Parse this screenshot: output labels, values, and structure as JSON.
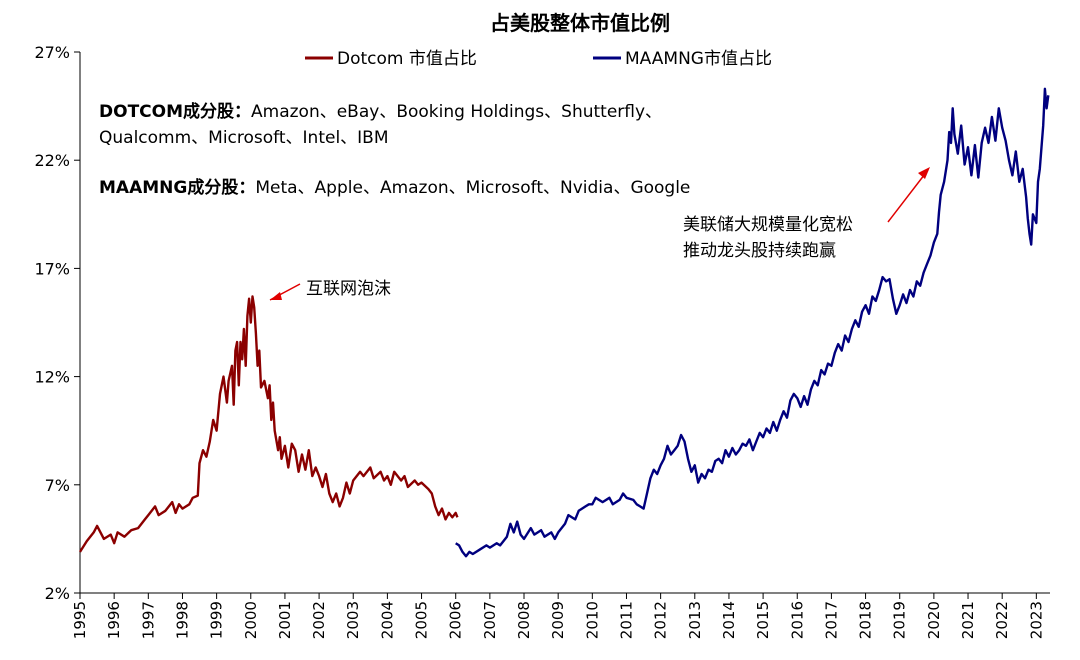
{
  "chart_data": {
    "type": "line",
    "title": "占美股整体市值比例",
    "y_unit": "%",
    "ylim": [
      2,
      27
    ],
    "y_ticks": [
      2,
      7,
      12,
      17,
      22,
      27
    ],
    "y_tick_labels": [
      "2%",
      "7%",
      "12%",
      "17%",
      "22%",
      "27%"
    ],
    "xlim": [
      1995,
      2023.4
    ],
    "x_ticks": [
      "1995",
      "1996",
      "1997",
      "1998",
      "1999",
      "2000",
      "2001",
      "2002",
      "2003",
      "2004",
      "2005",
      "2006",
      "2007",
      "2008",
      "2009",
      "2010",
      "2011",
      "2012",
      "2013",
      "2014",
      "2015",
      "2016",
      "2017",
      "2018",
      "2019",
      "2020",
      "2021",
      "2022",
      "2023"
    ],
    "series": [
      {
        "name": "Dotcom 市值占比",
        "color": "#8B0000",
        "points": [
          [
            1995.0,
            3.9
          ],
          [
            1995.2,
            4.4
          ],
          [
            1995.4,
            4.8
          ],
          [
            1995.5,
            5.1
          ],
          [
            1995.7,
            4.5
          ],
          [
            1995.9,
            4.7
          ],
          [
            1996.0,
            4.3
          ],
          [
            1996.1,
            4.8
          ],
          [
            1996.3,
            4.6
          ],
          [
            1996.5,
            4.9
          ],
          [
            1996.7,
            5.0
          ],
          [
            1996.9,
            5.4
          ],
          [
            1997.0,
            5.6
          ],
          [
            1997.2,
            6.0
          ],
          [
            1997.3,
            5.6
          ],
          [
            1997.5,
            5.8
          ],
          [
            1997.7,
            6.2
          ],
          [
            1997.8,
            5.7
          ],
          [
            1997.9,
            6.1
          ],
          [
            1998.0,
            5.9
          ],
          [
            1998.2,
            6.1
          ],
          [
            1998.3,
            6.4
          ],
          [
            1998.45,
            6.5
          ],
          [
            1998.5,
            8.0
          ],
          [
            1998.6,
            8.6
          ],
          [
            1998.7,
            8.3
          ],
          [
            1998.8,
            9.0
          ],
          [
            1998.9,
            10.0
          ],
          [
            1999.0,
            9.5
          ],
          [
            1999.1,
            11.2
          ],
          [
            1999.2,
            12.0
          ],
          [
            1999.3,
            10.8
          ],
          [
            1999.35,
            11.8
          ],
          [
            1999.45,
            12.5
          ],
          [
            1999.5,
            10.7
          ],
          [
            1999.55,
            13.2
          ],
          [
            1999.6,
            13.6
          ],
          [
            1999.65,
            11.6
          ],
          [
            1999.7,
            13.6
          ],
          [
            1999.75,
            12.8
          ],
          [
            1999.8,
            14.2
          ],
          [
            1999.85,
            12.5
          ],
          [
            1999.9,
            14.8
          ],
          [
            1999.95,
            15.6
          ],
          [
            2000.0,
            14.5
          ],
          [
            2000.05,
            15.7
          ],
          [
            2000.1,
            15.2
          ],
          [
            2000.15,
            14.0
          ],
          [
            2000.2,
            12.5
          ],
          [
            2000.25,
            13.2
          ],
          [
            2000.3,
            11.5
          ],
          [
            2000.4,
            11.8
          ],
          [
            2000.5,
            11.0
          ],
          [
            2000.55,
            11.6
          ],
          [
            2000.6,
            10.0
          ],
          [
            2000.65,
            10.8
          ],
          [
            2000.7,
            9.5
          ],
          [
            2000.8,
            8.6
          ],
          [
            2000.85,
            9.2
          ],
          [
            2000.9,
            8.2
          ],
          [
            2001.0,
            8.8
          ],
          [
            2001.1,
            7.8
          ],
          [
            2001.2,
            8.9
          ],
          [
            2001.3,
            8.6
          ],
          [
            2001.4,
            7.6
          ],
          [
            2001.5,
            8.4
          ],
          [
            2001.6,
            7.7
          ],
          [
            2001.7,
            8.6
          ],
          [
            2001.8,
            7.4
          ],
          [
            2001.9,
            7.8
          ],
          [
            2002.0,
            7.4
          ],
          [
            2002.1,
            6.9
          ],
          [
            2002.2,
            7.5
          ],
          [
            2002.3,
            6.6
          ],
          [
            2002.4,
            6.2
          ],
          [
            2002.5,
            6.6
          ],
          [
            2002.6,
            6.0
          ],
          [
            2002.7,
            6.4
          ],
          [
            2002.8,
            7.1
          ],
          [
            2002.9,
            6.6
          ],
          [
            2003.0,
            7.2
          ],
          [
            2003.2,
            7.6
          ],
          [
            2003.3,
            7.4
          ],
          [
            2003.5,
            7.8
          ],
          [
            2003.6,
            7.3
          ],
          [
            2003.8,
            7.6
          ],
          [
            2003.9,
            7.2
          ],
          [
            2004.0,
            7.4
          ],
          [
            2004.1,
            7.0
          ],
          [
            2004.2,
            7.6
          ],
          [
            2004.4,
            7.2
          ],
          [
            2004.5,
            7.4
          ],
          [
            2004.6,
            6.9
          ],
          [
            2004.8,
            7.2
          ],
          [
            2004.9,
            7.0
          ],
          [
            2005.0,
            7.1
          ],
          [
            2005.2,
            6.8
          ],
          [
            2005.3,
            6.6
          ],
          [
            2005.4,
            6.0
          ],
          [
            2005.5,
            5.6
          ],
          [
            2005.6,
            5.9
          ],
          [
            2005.7,
            5.4
          ],
          [
            2005.8,
            5.7
          ],
          [
            2005.9,
            5.5
          ],
          [
            2006.0,
            5.7
          ],
          [
            2006.05,
            5.5
          ]
        ]
      },
      {
        "name": "MAAMNG市值占比",
        "color": "#00007F",
        "points": [
          [
            2006.0,
            4.3
          ],
          [
            2006.1,
            4.2
          ],
          [
            2006.2,
            3.9
          ],
          [
            2006.3,
            3.7
          ],
          [
            2006.4,
            3.9
          ],
          [
            2006.5,
            3.8
          ],
          [
            2006.7,
            4.0
          ],
          [
            2006.9,
            4.2
          ],
          [
            2007.0,
            4.1
          ],
          [
            2007.2,
            4.3
          ],
          [
            2007.3,
            4.2
          ],
          [
            2007.5,
            4.6
          ],
          [
            2007.6,
            5.2
          ],
          [
            2007.7,
            4.8
          ],
          [
            2007.8,
            5.3
          ],
          [
            2007.9,
            4.7
          ],
          [
            2008.0,
            4.5
          ],
          [
            2008.2,
            5.0
          ],
          [
            2008.3,
            4.7
          ],
          [
            2008.5,
            4.9
          ],
          [
            2008.6,
            4.6
          ],
          [
            2008.8,
            4.8
          ],
          [
            2008.9,
            4.5
          ],
          [
            2009.0,
            4.8
          ],
          [
            2009.2,
            5.2
          ],
          [
            2009.3,
            5.6
          ],
          [
            2009.5,
            5.4
          ],
          [
            2009.6,
            5.8
          ],
          [
            2009.8,
            6.0
          ],
          [
            2009.9,
            6.1
          ],
          [
            2010.0,
            6.1
          ],
          [
            2010.1,
            6.4
          ],
          [
            2010.3,
            6.2
          ],
          [
            2010.5,
            6.4
          ],
          [
            2010.6,
            6.1
          ],
          [
            2010.8,
            6.3
          ],
          [
            2010.9,
            6.6
          ],
          [
            2011.0,
            6.4
          ],
          [
            2011.2,
            6.3
          ],
          [
            2011.3,
            6.1
          ],
          [
            2011.4,
            6.0
          ],
          [
            2011.5,
            5.9
          ],
          [
            2011.6,
            6.6
          ],
          [
            2011.7,
            7.3
          ],
          [
            2011.8,
            7.7
          ],
          [
            2011.9,
            7.5
          ],
          [
            2012.0,
            7.9
          ],
          [
            2012.1,
            8.2
          ],
          [
            2012.2,
            8.8
          ],
          [
            2012.3,
            8.4
          ],
          [
            2012.4,
            8.6
          ],
          [
            2012.5,
            8.8
          ],
          [
            2012.6,
            9.3
          ],
          [
            2012.7,
            9.0
          ],
          [
            2012.8,
            8.2
          ],
          [
            2012.9,
            7.6
          ],
          [
            2013.0,
            7.9
          ],
          [
            2013.1,
            7.1
          ],
          [
            2013.2,
            7.5
          ],
          [
            2013.3,
            7.3
          ],
          [
            2013.4,
            7.7
          ],
          [
            2013.5,
            7.6
          ],
          [
            2013.6,
            8.1
          ],
          [
            2013.7,
            8.2
          ],
          [
            2013.8,
            8.0
          ],
          [
            2013.9,
            8.6
          ],
          [
            2014.0,
            8.3
          ],
          [
            2014.1,
            8.7
          ],
          [
            2014.2,
            8.4
          ],
          [
            2014.3,
            8.6
          ],
          [
            2014.4,
            8.9
          ],
          [
            2014.5,
            8.8
          ],
          [
            2014.6,
            9.1
          ],
          [
            2014.7,
            8.6
          ],
          [
            2014.8,
            9.0
          ],
          [
            2014.9,
            9.4
          ],
          [
            2015.0,
            9.2
          ],
          [
            2015.1,
            9.6
          ],
          [
            2015.2,
            9.4
          ],
          [
            2015.3,
            9.9
          ],
          [
            2015.4,
            9.5
          ],
          [
            2015.5,
            10.0
          ],
          [
            2015.6,
            10.4
          ],
          [
            2015.7,
            10.1
          ],
          [
            2015.8,
            10.9
          ],
          [
            2015.9,
            11.2
          ],
          [
            2016.0,
            11.0
          ],
          [
            2016.1,
            10.6
          ],
          [
            2016.2,
            11.1
          ],
          [
            2016.3,
            10.7
          ],
          [
            2016.4,
            11.4
          ],
          [
            2016.5,
            11.8
          ],
          [
            2016.6,
            11.6
          ],
          [
            2016.7,
            12.3
          ],
          [
            2016.8,
            12.1
          ],
          [
            2016.9,
            12.6
          ],
          [
            2017.0,
            12.5
          ],
          [
            2017.1,
            13.1
          ],
          [
            2017.2,
            13.5
          ],
          [
            2017.3,
            13.2
          ],
          [
            2017.4,
            13.9
          ],
          [
            2017.5,
            13.6
          ],
          [
            2017.6,
            14.2
          ],
          [
            2017.7,
            14.6
          ],
          [
            2017.8,
            14.3
          ],
          [
            2017.9,
            15.0
          ],
          [
            2018.0,
            15.3
          ],
          [
            2018.1,
            14.9
          ],
          [
            2018.2,
            15.7
          ],
          [
            2018.3,
            15.5
          ],
          [
            2018.4,
            16.0
          ],
          [
            2018.5,
            16.6
          ],
          [
            2018.6,
            16.4
          ],
          [
            2018.7,
            16.5
          ],
          [
            2018.8,
            15.6
          ],
          [
            2018.9,
            14.9
          ],
          [
            2019.0,
            15.3
          ],
          [
            2019.1,
            15.8
          ],
          [
            2019.2,
            15.4
          ],
          [
            2019.3,
            16.0
          ],
          [
            2019.4,
            15.7
          ],
          [
            2019.5,
            16.4
          ],
          [
            2019.6,
            16.2
          ],
          [
            2019.7,
            16.8
          ],
          [
            2019.8,
            17.2
          ],
          [
            2019.9,
            17.6
          ],
          [
            2020.0,
            18.2
          ],
          [
            2020.1,
            18.6
          ],
          [
            2020.15,
            19.6
          ],
          [
            2020.2,
            20.4
          ],
          [
            2020.3,
            21.0
          ],
          [
            2020.4,
            22.0
          ],
          [
            2020.45,
            23.3
          ],
          [
            2020.5,
            22.8
          ],
          [
            2020.55,
            24.4
          ],
          [
            2020.6,
            23.2
          ],
          [
            2020.7,
            22.3
          ],
          [
            2020.8,
            23.6
          ],
          [
            2020.9,
            21.8
          ],
          [
            2021.0,
            22.6
          ],
          [
            2021.1,
            21.3
          ],
          [
            2021.2,
            22.7
          ],
          [
            2021.3,
            21.2
          ],
          [
            2021.4,
            22.8
          ],
          [
            2021.5,
            23.5
          ],
          [
            2021.6,
            22.8
          ],
          [
            2021.7,
            24.0
          ],
          [
            2021.8,
            22.9
          ],
          [
            2021.9,
            24.4
          ],
          [
            2022.0,
            23.5
          ],
          [
            2022.1,
            22.9
          ],
          [
            2022.2,
            22.0
          ],
          [
            2022.3,
            21.3
          ],
          [
            2022.4,
            22.4
          ],
          [
            2022.5,
            21.0
          ],
          [
            2022.6,
            21.6
          ],
          [
            2022.7,
            20.3
          ],
          [
            2022.75,
            19.3
          ],
          [
            2022.8,
            18.6
          ],
          [
            2022.85,
            18.1
          ],
          [
            2022.9,
            19.5
          ],
          [
            2023.0,
            19.1
          ],
          [
            2023.05,
            21.0
          ],
          [
            2023.1,
            21.6
          ],
          [
            2023.15,
            22.6
          ],
          [
            2023.2,
            23.6
          ],
          [
            2023.25,
            25.3
          ],
          [
            2023.3,
            24.4
          ],
          [
            2023.35,
            25.0
          ]
        ]
      }
    ],
    "notes": [
      {
        "label": "DOTCOM成分股：",
        "line1": "Amazon、eBay、Booking Holdings、Shutterfly、",
        "line2": "Qualcomm、Microsoft、Intel、IBM"
      },
      {
        "label": "MAAMNG成分股：",
        "line1": "Meta、Apple、Amazon、Microsoft、Nvidia、Google"
      }
    ],
    "annotations": [
      {
        "text": "互联网泡沫",
        "target": [
          2000.05,
          15.5
        ]
      },
      {
        "line1": "美联储大规模量化宽松",
        "line2": "推动龙头股持续跑赢",
        "target": [
          2020.4,
          21.8
        ]
      }
    ],
    "colors": {
      "annotation_arrow": "#E00000",
      "axis": "#000000"
    }
  }
}
